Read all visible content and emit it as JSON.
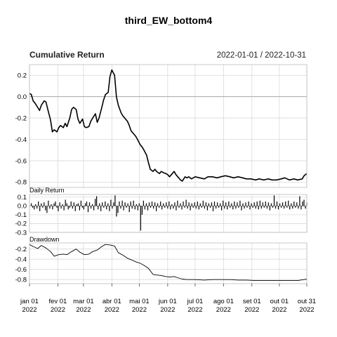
{
  "chart_data": [
    {
      "type": "line",
      "title": "third_EW_bottom4",
      "panel_title": "Cumulative Return",
      "date_range": "2022-01-01 / 2022-10-31",
      "ylim": [
        -0.85,
        0.3
      ],
      "yticks": [
        0.2,
        0.0,
        -0.2,
        -0.4,
        -0.6,
        -0.8
      ],
      "ytick_labels": [
        "0.2",
        "0.0",
        "-0.2",
        "-0.4",
        "-0.6",
        "-0.8"
      ],
      "reference_line": 0,
      "grid": true,
      "series": [
        {
          "x": [
            "2022-01-01",
            "2022-01-03",
            "2022-01-05",
            "2022-01-07",
            "2022-01-10",
            "2022-01-12",
            "2022-01-14",
            "2022-01-17",
            "2022-01-19",
            "2022-01-21",
            "2022-01-24",
            "2022-01-26",
            "2022-01-28",
            "2022-01-31",
            "2022-02-02",
            "2022-02-04",
            "2022-02-07",
            "2022-02-09",
            "2022-02-11",
            "2022-02-14",
            "2022-02-16",
            "2022-02-18",
            "2022-02-21",
            "2022-02-23",
            "2022-02-25",
            "2022-02-28",
            "2022-03-02",
            "2022-03-04",
            "2022-03-07",
            "2022-03-09",
            "2022-03-11",
            "2022-03-14",
            "2022-03-16",
            "2022-03-18",
            "2022-03-21",
            "2022-03-23",
            "2022-03-25",
            "2022-03-28",
            "2022-03-30",
            "2022-04-01",
            "2022-04-04",
            "2022-04-06",
            "2022-04-08",
            "2022-04-11",
            "2022-04-13",
            "2022-04-15",
            "2022-04-18",
            "2022-04-20",
            "2022-04-22",
            "2022-04-25",
            "2022-04-27",
            "2022-04-29",
            "2022-05-02",
            "2022-05-04",
            "2022-05-06",
            "2022-05-09",
            "2022-05-11",
            "2022-05-13",
            "2022-05-16",
            "2022-05-18",
            "2022-05-20",
            "2022-05-23",
            "2022-05-25",
            "2022-05-27",
            "2022-05-30",
            "2022-06-01",
            "2022-06-03",
            "2022-06-06",
            "2022-06-08",
            "2022-06-10",
            "2022-06-13",
            "2022-06-15",
            "2022-06-17",
            "2022-06-20",
            "2022-06-22",
            "2022-06-24",
            "2022-06-27",
            "2022-06-29",
            "2022-07-01",
            "2022-07-06",
            "2022-07-11",
            "2022-07-15",
            "2022-07-20",
            "2022-07-25",
            "2022-07-29",
            "2022-08-03",
            "2022-08-08",
            "2022-08-12",
            "2022-08-17",
            "2022-08-22",
            "2022-08-26",
            "2022-08-31",
            "2022-09-05",
            "2022-09-09",
            "2022-09-14",
            "2022-09-19",
            "2022-09-23",
            "2022-09-28",
            "2022-10-03",
            "2022-10-07",
            "2022-10-12",
            "2022-10-17",
            "2022-10-21",
            "2022-10-26",
            "2022-10-28",
            "2022-10-31"
          ],
          "y": [
            0.03,
            0.02,
            -0.04,
            -0.06,
            -0.1,
            -0.13,
            -0.08,
            -0.04,
            -0.05,
            -0.12,
            -0.22,
            -0.33,
            -0.31,
            -0.33,
            -0.29,
            -0.27,
            -0.29,
            -0.25,
            -0.28,
            -0.2,
            -0.12,
            -0.1,
            -0.12,
            -0.21,
            -0.25,
            -0.21,
            -0.28,
            -0.29,
            -0.28,
            -0.23,
            -0.2,
            -0.16,
            -0.24,
            -0.2,
            -0.1,
            -0.03,
            0.02,
            0.04,
            0.19,
            0.25,
            0.2,
            0.0,
            -0.08,
            -0.15,
            -0.18,
            -0.2,
            -0.23,
            -0.27,
            -0.32,
            -0.35,
            -0.37,
            -0.4,
            -0.45,
            -0.47,
            -0.5,
            -0.55,
            -0.62,
            -0.68,
            -0.7,
            -0.68,
            -0.7,
            -0.72,
            -0.7,
            -0.71,
            -0.72,
            -0.73,
            -0.75,
            -0.72,
            -0.7,
            -0.73,
            -0.76,
            -0.78,
            -0.79,
            -0.75,
            -0.76,
            -0.75,
            -0.77,
            -0.76,
            -0.75,
            -0.76,
            -0.77,
            -0.75,
            -0.75,
            -0.76,
            -0.75,
            -0.74,
            -0.75,
            -0.76,
            -0.75,
            -0.76,
            -0.77,
            -0.77,
            -0.78,
            -0.77,
            -0.78,
            -0.77,
            -0.78,
            -0.78,
            -0.77,
            -0.76,
            -0.78,
            -0.77,
            -0.78,
            -0.77,
            -0.74,
            -0.72
          ]
        }
      ]
    },
    {
      "type": "bar",
      "panel_title": "Daily Return",
      "ylim": [
        -0.3,
        0.13
      ],
      "yticks": [
        0.1,
        0.0,
        -0.1,
        -0.2,
        -0.3
      ],
      "ytick_labels": [
        "0.1",
        "0.0",
        "-0.1",
        "-0.2",
        "-0.3"
      ],
      "reference_line": 0,
      "grid": true,
      "series": [
        {
          "x_start": "2022-01-03",
          "x_end": "2022-10-31",
          "values": [
            0.03,
            -0.02,
            -0.04,
            0.02,
            -0.03,
            0.05,
            -0.06,
            0.03,
            -0.02,
            0.04,
            -0.05,
            -0.08,
            0.06,
            -0.03,
            0.02,
            -0.04,
            0.03,
            0.05,
            -0.02,
            -0.06,
            0.04,
            -0.03,
            0.02,
            -0.05,
            0.07,
            0.03,
            -0.04,
            -0.02,
            0.05,
            -0.03,
            0.04,
            -0.06,
            0.02,
            0.03,
            -0.05,
            0.06,
            -0.02,
            -0.04,
            0.03,
            0.05,
            -0.07,
            0.04,
            -0.03,
            0.02,
            -0.05,
            0.08,
            0.11,
            -0.04,
            0.03,
            -0.06,
            0.04,
            -0.02,
            0.05,
            -0.04,
            0.03,
            -0.06,
            0.07,
            -0.03,
            0.04,
            0.12,
            -0.12,
            -0.08,
            0.05,
            -0.03,
            0.06,
            -0.05,
            0.04,
            -0.02,
            0.03,
            -0.07,
            0.05,
            -0.03,
            0.06,
            -0.04,
            0.02,
            -0.05,
            0.03,
            -0.28,
            -0.1,
            0.06,
            -0.04,
            0.03,
            -0.05,
            0.04,
            -0.02,
            0.05,
            -0.03,
            0.04,
            -0.06,
            0.03,
            -0.02,
            0.05,
            -0.04,
            0.03,
            -0.02,
            0.04,
            -0.03,
            0.05,
            -0.04,
            0.02,
            -0.03,
            0.04,
            -0.05,
            0.06,
            -0.02,
            0.03,
            -0.04,
            0.05,
            -0.02,
            0.07,
            -0.03,
            0.04,
            -0.05,
            0.03,
            -0.02,
            0.04,
            -0.03,
            0.05,
            -0.04,
            0.03,
            -0.02,
            0.06,
            -0.03,
            0.04,
            -0.05,
            0.03,
            -0.02,
            0.04,
            -0.06,
            0.05,
            -0.03,
            0.04,
            -0.02,
            0.03,
            -0.05,
            0.06,
            -0.03,
            0.04,
            -0.04,
            0.05,
            -0.02,
            0.03,
            -0.04,
            0.05,
            -0.03,
            0.04,
            -0.02,
            0.06,
            -0.05,
            0.03,
            -0.03,
            0.04,
            -0.02,
            0.05,
            -0.04,
            0.03,
            -0.02,
            0.04,
            -0.03,
            0.05,
            -0.04,
            0.06,
            -0.03,
            0.04,
            -0.02,
            0.05,
            -0.03,
            0.04,
            -0.05,
            0.03,
            -0.02,
            0.12,
            -0.03,
            0.05,
            -0.04,
            0.03,
            -0.02,
            0.04,
            -0.03,
            0.05,
            -0.02,
            0.06,
            -0.04,
            0.03,
            -0.03,
            0.05,
            -0.02,
            0.04,
            -0.03,
            0.11,
            -0.04,
            0.05,
            0.07,
            -0.03,
            0.04
          ]
        }
      ]
    },
    {
      "type": "line",
      "panel_title": "Drawdown",
      "ylim": [
        -0.88,
        -0.08
      ],
      "yticks": [
        -0.2,
        -0.4,
        -0.6,
        -0.8
      ],
      "ytick_labels": [
        "-0.2",
        "-0.4",
        "-0.6",
        "-0.8"
      ],
      "grid": true,
      "series": [
        {
          "x": [
            "2022-01-01",
            "2022-01-05",
            "2022-01-10",
            "2022-01-14",
            "2022-01-19",
            "2022-01-24",
            "2022-01-28",
            "2022-02-02",
            "2022-02-07",
            "2022-02-11",
            "2022-02-16",
            "2022-02-21",
            "2022-02-25",
            "2022-03-02",
            "2022-03-07",
            "2022-03-11",
            "2022-03-16",
            "2022-03-21",
            "2022-03-25",
            "2022-03-30",
            "2022-04-04",
            "2022-04-08",
            "2022-04-13",
            "2022-04-18",
            "2022-04-22",
            "2022-04-27",
            "2022-05-02",
            "2022-05-06",
            "2022-05-11",
            "2022-05-16",
            "2022-05-20",
            "2022-05-25",
            "2022-05-30",
            "2022-06-03",
            "2022-06-08",
            "2022-06-13",
            "2022-06-17",
            "2022-06-22",
            "2022-06-27",
            "2022-07-01",
            "2022-07-11",
            "2022-07-20",
            "2022-07-29",
            "2022-08-08",
            "2022-08-17",
            "2022-08-26",
            "2022-09-05",
            "2022-09-14",
            "2022-09-23",
            "2022-10-03",
            "2022-10-12",
            "2022-10-21",
            "2022-10-28",
            "2022-10-31"
          ],
          "y": [
            -0.11,
            -0.15,
            -0.19,
            -0.13,
            -0.18,
            -0.25,
            -0.34,
            -0.31,
            -0.3,
            -0.31,
            -0.25,
            -0.2,
            -0.26,
            -0.31,
            -0.3,
            -0.25,
            -0.22,
            -0.15,
            -0.11,
            -0.12,
            -0.14,
            -0.27,
            -0.32,
            -0.38,
            -0.41,
            -0.45,
            -0.48,
            -0.52,
            -0.58,
            -0.7,
            -0.71,
            -0.72,
            -0.74,
            -0.75,
            -0.74,
            -0.77,
            -0.79,
            -0.8,
            -0.8,
            -0.8,
            -0.81,
            -0.8,
            -0.8,
            -0.8,
            -0.81,
            -0.81,
            -0.82,
            -0.82,
            -0.82,
            -0.82,
            -0.82,
            -0.82,
            -0.8,
            -0.79
          ]
        }
      ]
    }
  ],
  "x_axis": {
    "start": "2022-01-01",
    "end": "2022-10-31",
    "ticks": [
      {
        "date": "2022-01-01",
        "label": "jan 01",
        "year": "2022"
      },
      {
        "date": "2022-02-01",
        "label": "fev 01",
        "year": "2022"
      },
      {
        "date": "2022-03-01",
        "label": "mar 01",
        "year": "2022"
      },
      {
        "date": "2022-04-01",
        "label": "abr 01",
        "year": "2022"
      },
      {
        "date": "2022-05-01",
        "label": "mai 01",
        "year": "2022"
      },
      {
        "date": "2022-06-01",
        "label": "jun 01",
        "year": "2022"
      },
      {
        "date": "2022-07-01",
        "label": "jul 01",
        "year": "2022"
      },
      {
        "date": "2022-08-01",
        "label": "ago 01",
        "year": "2022"
      },
      {
        "date": "2022-09-01",
        "label": "set 01",
        "year": "2022"
      },
      {
        "date": "2022-10-01",
        "label": "out 01",
        "year": "2022"
      },
      {
        "date": "2022-10-31",
        "label": "out 31",
        "year": "2022"
      }
    ]
  },
  "colors": {
    "line": "#000000",
    "grid": "#d9d9d9",
    "zero_line": "#aaaaaa"
  }
}
